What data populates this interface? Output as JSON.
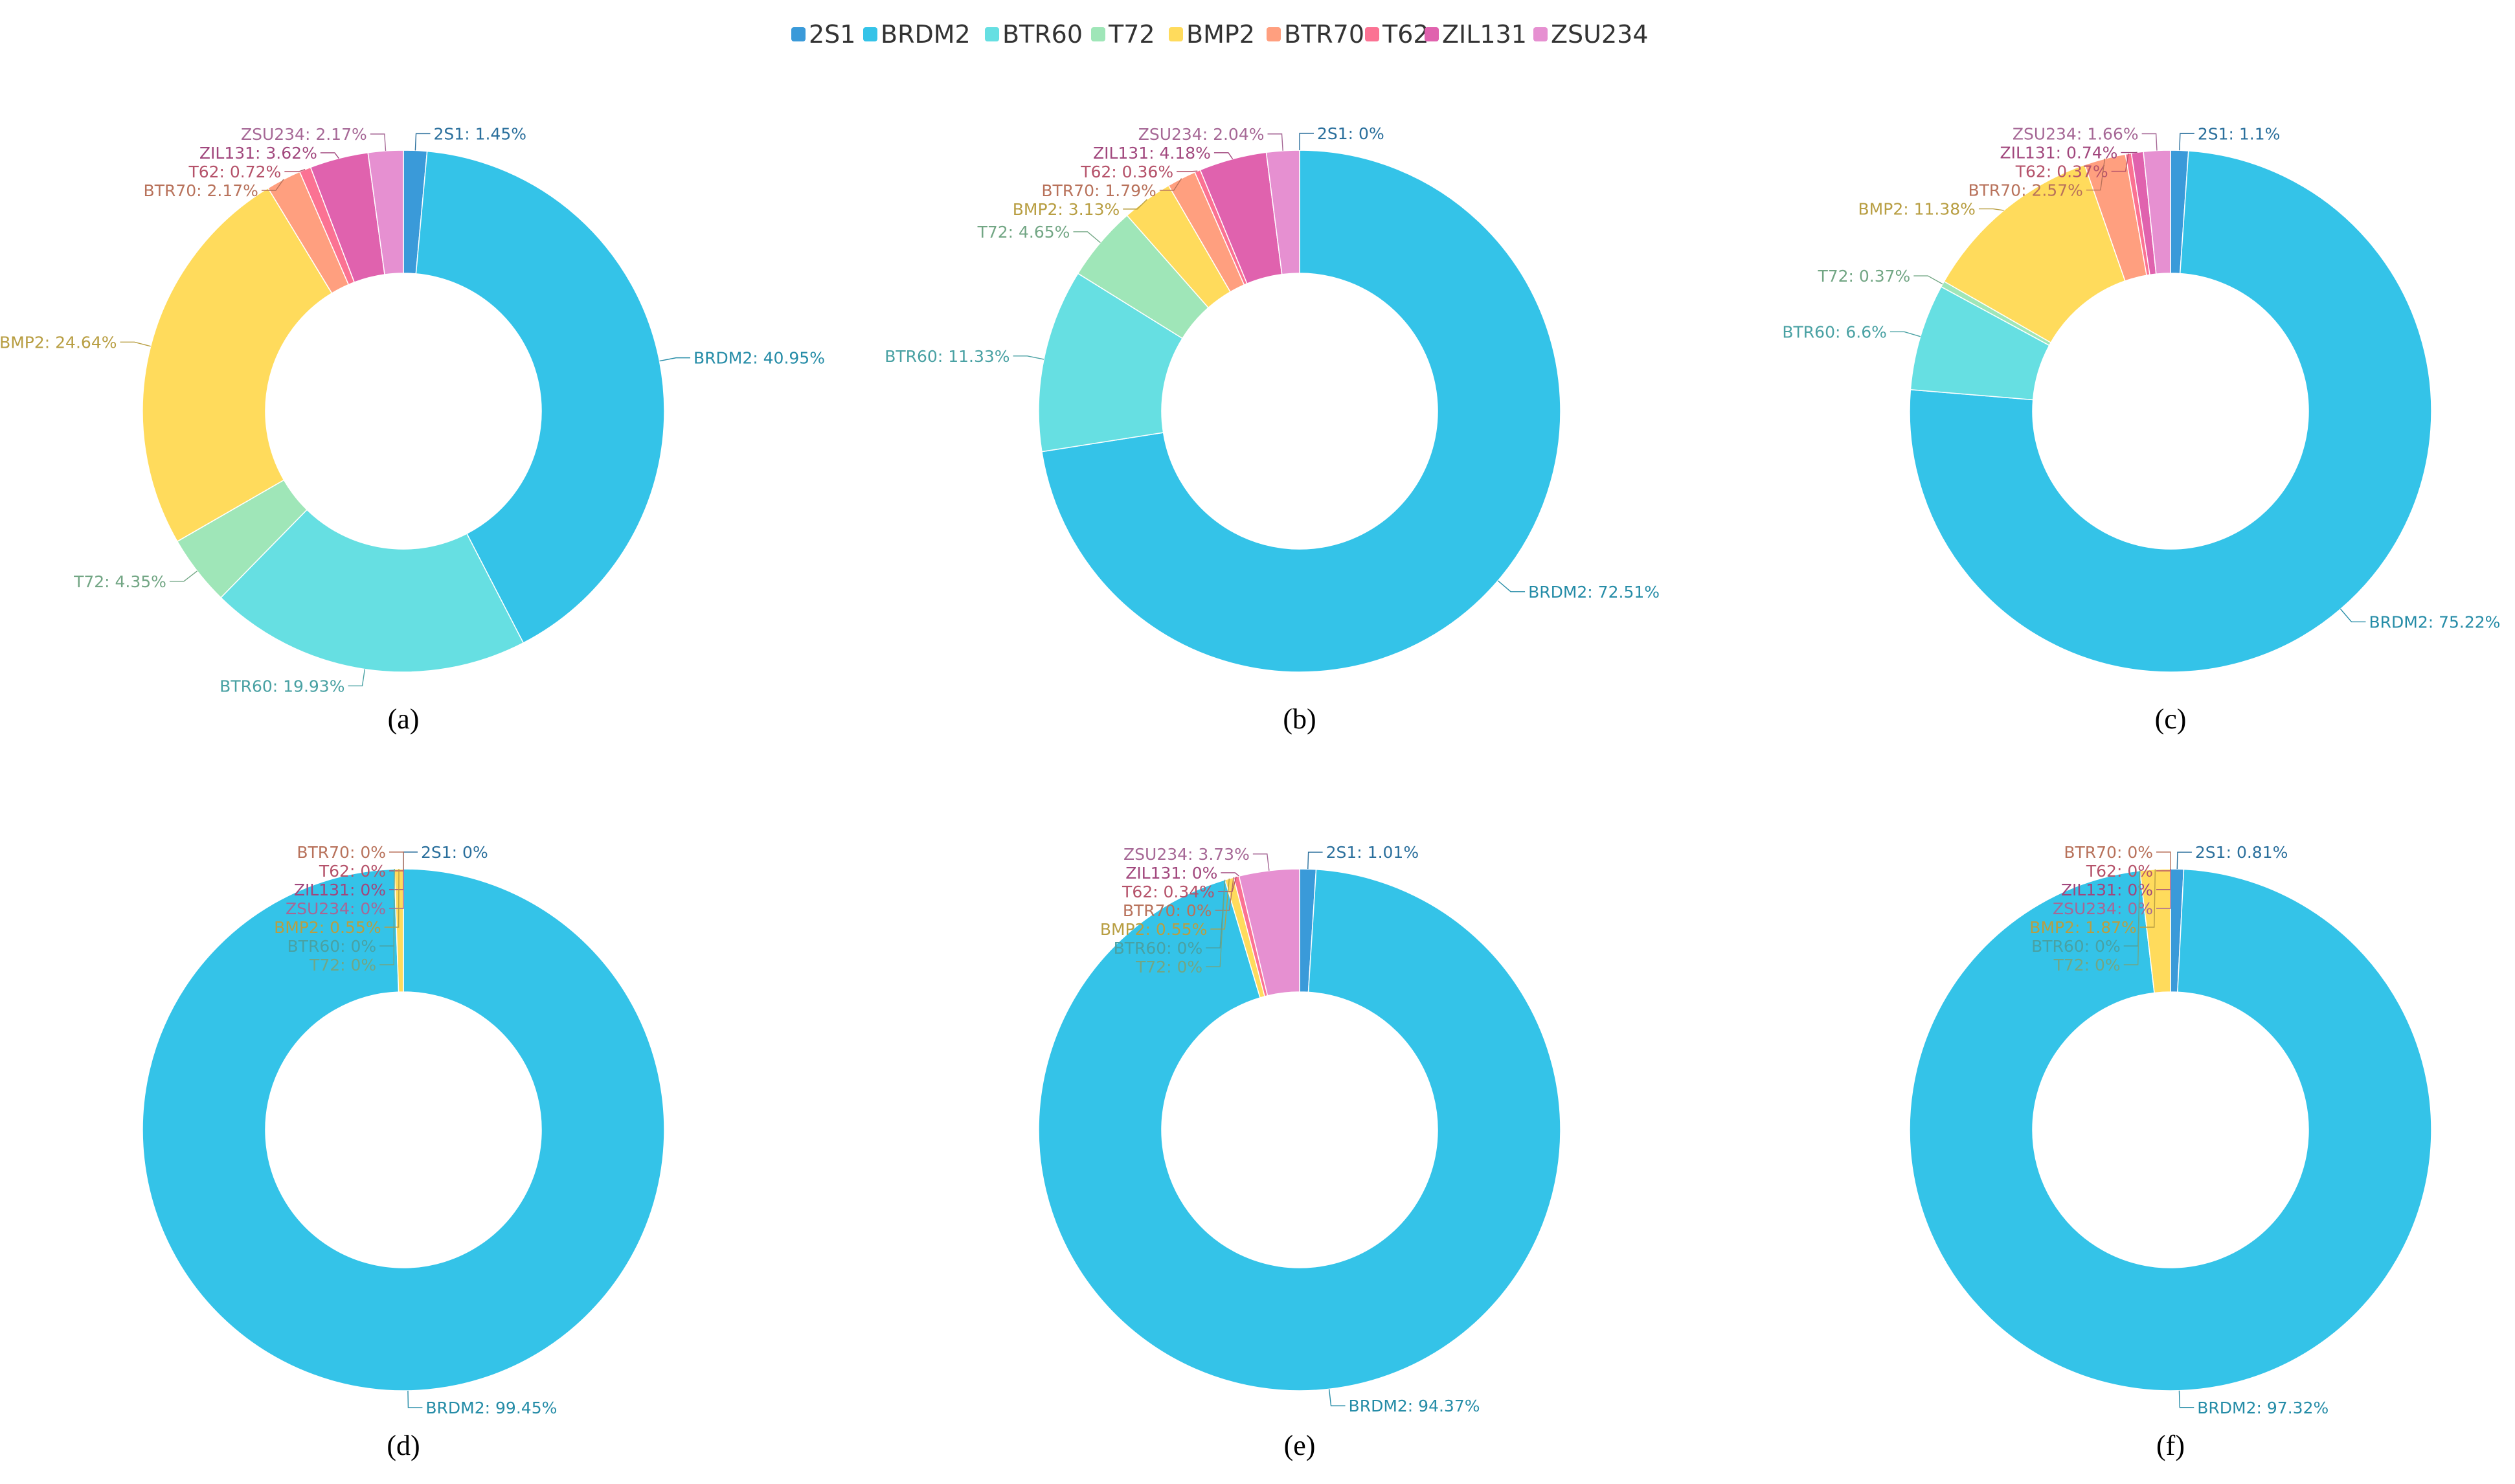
{
  "legend": [
    {
      "name": "2S1",
      "color": "#3a9ad9"
    },
    {
      "name": "BRDM2",
      "color": "#34c3e8"
    },
    {
      "name": "BTR60",
      "color": "#66dfe2"
    },
    {
      "name": "T72",
      "color": "#9fe6b8"
    },
    {
      "name": "BMP2",
      "color": "#ffdb5c"
    },
    {
      "name": "BTR70",
      "color": "#ff9f7f"
    },
    {
      "name": "T62",
      "color": "#fb7293"
    },
    {
      "name": "ZIL131",
      "color": "#e062ae"
    },
    {
      "name": "ZSU234",
      "color": "#e690d1"
    }
  ],
  "chart_data": [
    {
      "type": "pie",
      "subtype": "donut",
      "caption": "(a)",
      "categories": [
        "2S1",
        "BRDM2",
        "BTR60",
        "T72",
        "BMP2",
        "BTR70",
        "T62",
        "ZIL131",
        "ZSU234"
      ],
      "values": [
        1.45,
        40.95,
        19.93,
        4.35,
        24.64,
        2.17,
        0.72,
        3.62,
        2.17
      ],
      "labels": [
        "2S1: 1.45%",
        "BRDM2: 40.95%",
        "BTR60: 19.93%",
        "T72: 4.35%",
        "BMP2: 24.64%",
        "BTR70: 2.17%",
        "T62: 0.72%",
        "ZIL131: 3.62%",
        "ZSU234: 2.17%"
      ]
    },
    {
      "type": "pie",
      "subtype": "donut",
      "caption": "(b)",
      "categories": [
        "2S1",
        "BRDM2",
        "BTR60",
        "T72",
        "BMP2",
        "BTR70",
        "T62",
        "ZIL131",
        "ZSU234"
      ],
      "values": [
        0,
        72.51,
        11.33,
        4.65,
        3.13,
        1.79,
        0.36,
        4.18,
        2.04
      ],
      "labels": [
        "2S1: 0%",
        "BRDM2: 72.51%",
        "BTR60: 11.33%",
        "T72: 4.65%",
        "BMP2: 3.13%",
        "BTR70: 1.79%",
        "T62: 0.36%",
        "ZIL131: 4.18%",
        "ZSU234: 2.04%"
      ]
    },
    {
      "type": "pie",
      "subtype": "donut",
      "caption": "(c)",
      "categories": [
        "2S1",
        "BRDM2",
        "BTR60",
        "T72",
        "BMP2",
        "BTR70",
        "T62",
        "ZIL131",
        "ZSU234"
      ],
      "values": [
        1.1,
        75.22,
        6.6,
        0.37,
        11.38,
        2.57,
        0.37,
        0.74,
        1.66
      ],
      "labels": [
        "2S1: 1.1%",
        "BRDM2: 75.22%",
        "BTR60: 6.6%",
        "T72: 0.37%",
        "BMP2: 11.38%",
        "BTR70: 2.57%",
        "T62: 0.37%",
        "ZIL131: 0.74%",
        "ZSU234: 1.66%"
      ]
    },
    {
      "type": "pie",
      "subtype": "donut",
      "caption": "(d)",
      "categories": [
        "2S1",
        "BRDM2",
        "BTR60",
        "T72",
        "BMP2",
        "BTR70",
        "T62",
        "ZIL131",
        "ZSU234"
      ],
      "values": [
        0,
        99.45,
        0,
        0,
        0.55,
        0,
        0,
        0,
        0
      ],
      "labels": [
        "2S1: 0%",
        "BRDM2: 99.45%",
        "BTR60: 0%",
        "T72: 0%",
        "BMP2: 0.55%",
        "BTR70: 0%",
        "T62: 0%",
        "ZIL131: 0%",
        "ZSU234: 0%"
      ]
    },
    {
      "type": "pie",
      "subtype": "donut",
      "caption": "(e)",
      "categories": [
        "2S1",
        "BRDM2",
        "BTR60",
        "T72",
        "BMP2",
        "BTR70",
        "T62",
        "ZIL131",
        "ZSU234"
      ],
      "values": [
        1.01,
        94.37,
        0,
        0,
        0.55,
        0,
        0.34,
        0,
        3.73
      ],
      "labels": [
        "2S1: 1.01%",
        "BRDM2: 94.37%",
        "BTR60: 0%",
        "T72: 0%",
        "BMP2: 0.55%",
        "BTR70: 0%",
        "T62: 0.34%",
        "ZIL131: 0%",
        "ZSU234: 3.73%"
      ]
    },
    {
      "type": "pie",
      "subtype": "donut",
      "caption": "(f)",
      "categories": [
        "2S1",
        "BRDM2",
        "BTR60",
        "T72",
        "BMP2",
        "BTR70",
        "T62",
        "ZIL131",
        "ZSU234"
      ],
      "values": [
        0.81,
        97.32,
        0,
        0,
        1.87,
        0,
        0,
        0,
        0
      ],
      "labels": [
        "2S1: 0.81%",
        "BRDM2: 97.32%",
        "BTR60: 0%",
        "T72: 0%",
        "BMP2: 1.87%",
        "BTR70: 0%",
        "T62: 0%",
        "ZIL131: 0%",
        "ZSU234: 0%"
      ]
    }
  ]
}
